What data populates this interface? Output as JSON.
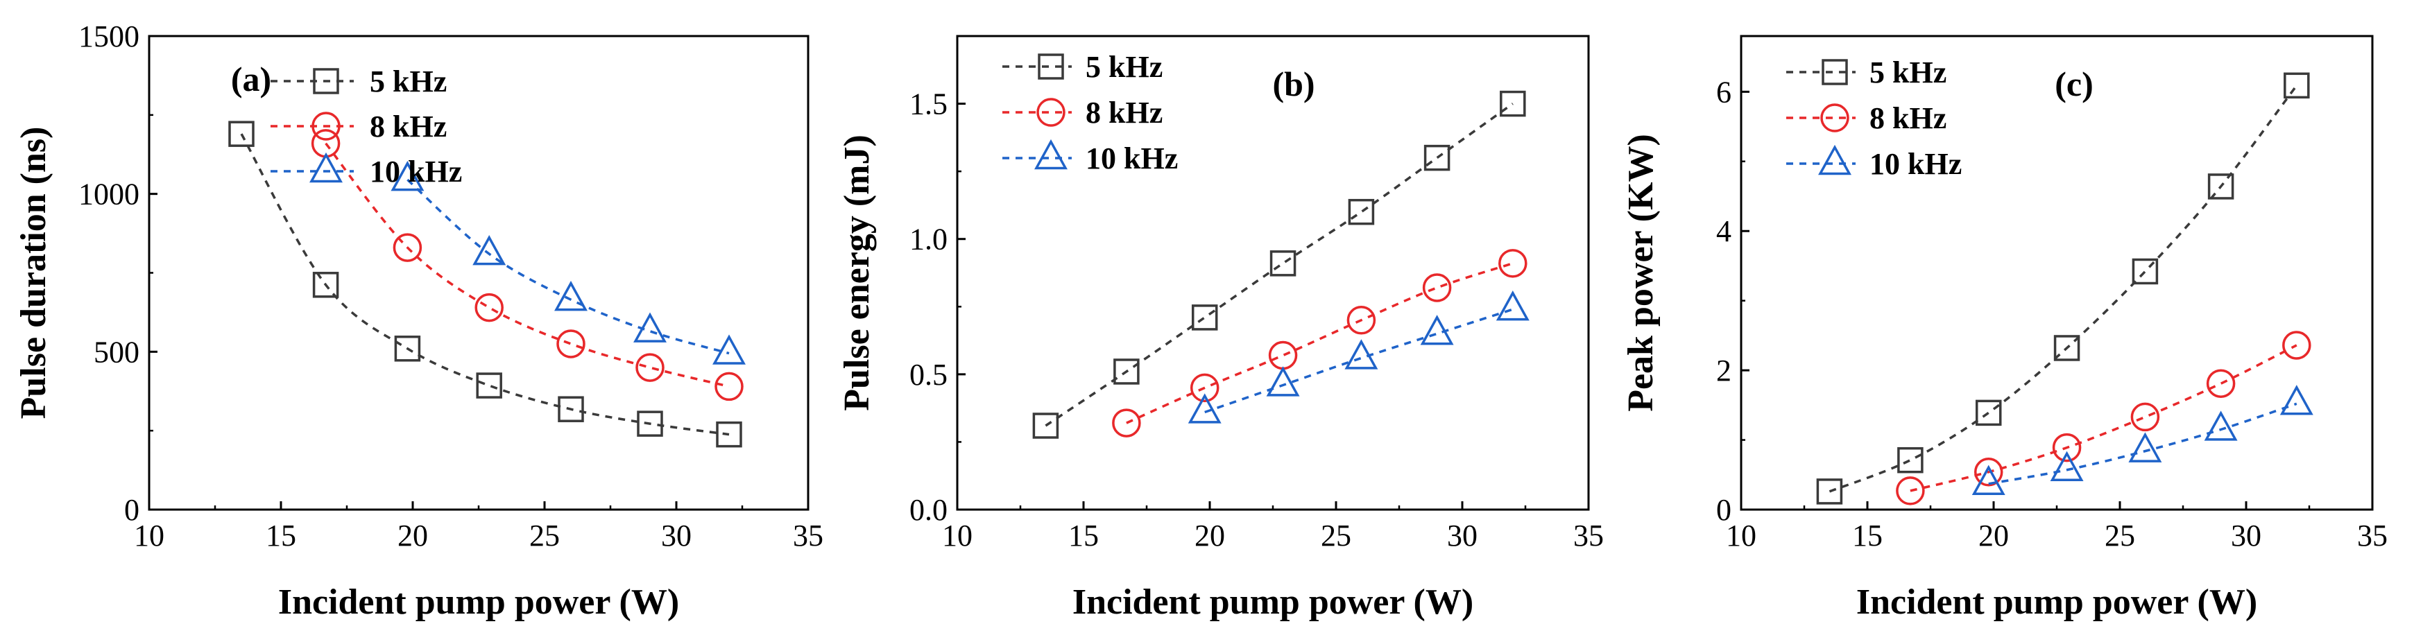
{
  "colors": {
    "5 kHz": "#3a3a3a",
    "8 kHz": "#e8282a",
    "10 kHz": "#1f63c9"
  },
  "chart_data": [
    {
      "type": "scatter",
      "panel_label": "(a)",
      "xlabel": "Incident pump power (W)",
      "ylabel": "Pulse duration (ns)",
      "xlim": [
        10,
        35
      ],
      "ylim": [
        0,
        1500
      ],
      "xticks": [
        10,
        15,
        20,
        25,
        30,
        35
      ],
      "yticks": [
        0,
        500,
        1000,
        1500
      ],
      "ytick_labels": [
        "0",
        "500",
        "1000",
        "1500"
      ],
      "legend_position": "top-right",
      "series": [
        {
          "name": "5 kHz",
          "marker": "square",
          "x": [
            13.5,
            16.7,
            19.8,
            22.9,
            26.0,
            29.0,
            32.0
          ],
          "y": [
            1190,
            712,
            510,
            393,
            318,
            272,
            238
          ]
        },
        {
          "name": "8 kHz",
          "marker": "circle",
          "x": [
            16.7,
            19.8,
            22.9,
            26.0,
            29.0,
            32.0
          ],
          "y": [
            1160,
            830,
            640,
            525,
            450,
            390
          ]
        },
        {
          "name": "10 kHz",
          "marker": "triangle",
          "x": [
            19.8,
            22.9,
            26.0,
            29.0,
            32.0
          ],
          "y": [
            1045,
            810,
            665,
            565,
            495
          ]
        }
      ]
    },
    {
      "type": "scatter",
      "panel_label": "(b)",
      "xlabel": "Incident pump power (W)",
      "ylabel": "Pulse energy (mJ)",
      "xlim": [
        10,
        35
      ],
      "ylim": [
        0,
        1.75
      ],
      "xticks": [
        10,
        15,
        20,
        25,
        30,
        35
      ],
      "yticks": [
        0,
        0.5,
        1.0,
        1.5
      ],
      "ytick_labels": [
        "0.0",
        "0.5",
        "1.0",
        "1.5"
      ],
      "legend_position": "top-left",
      "series": [
        {
          "name": "5 kHz",
          "marker": "square",
          "x": [
            13.5,
            16.7,
            19.8,
            22.9,
            26.0,
            29.0,
            32.0
          ],
          "y": [
            0.31,
            0.51,
            0.71,
            0.91,
            1.1,
            1.3,
            1.5
          ]
        },
        {
          "name": "8 kHz",
          "marker": "circle",
          "x": [
            16.7,
            19.8,
            22.9,
            26.0,
            29.0,
            32.0
          ],
          "y": [
            0.32,
            0.45,
            0.57,
            0.7,
            0.82,
            0.91
          ]
        },
        {
          "name": "10 kHz",
          "marker": "triangle",
          "x": [
            19.8,
            22.9,
            26.0,
            29.0,
            32.0
          ],
          "y": [
            0.36,
            0.46,
            0.56,
            0.65,
            0.74
          ]
        }
      ]
    },
    {
      "type": "scatter",
      "panel_label": "(c)",
      "xlabel": "Incident pump power (W)",
      "ylabel": "Peak power (KW)",
      "xlim": [
        10,
        35
      ],
      "ylim": [
        0,
        6.8
      ],
      "xticks": [
        10,
        15,
        20,
        25,
        30,
        35
      ],
      "yticks": [
        0,
        2,
        4,
        6
      ],
      "ytick_labels": [
        "0",
        "2",
        "4",
        "6"
      ],
      "legend_position": "top-left",
      "series": [
        {
          "name": "5 kHz",
          "marker": "square",
          "x": [
            13.5,
            16.7,
            19.8,
            22.9,
            26.0,
            29.0,
            32.0
          ],
          "y": [
            0.26,
            0.71,
            1.39,
            2.32,
            3.42,
            4.64,
            6.09
          ]
        },
        {
          "name": "8 kHz",
          "marker": "circle",
          "x": [
            16.7,
            19.8,
            22.9,
            26.0,
            29.0,
            32.0
          ],
          "y": [
            0.27,
            0.54,
            0.89,
            1.33,
            1.81,
            2.36
          ]
        },
        {
          "name": "10 kHz",
          "marker": "triangle",
          "x": [
            19.8,
            22.9,
            26.0,
            29.0,
            32.0
          ],
          "y": [
            0.37,
            0.57,
            0.84,
            1.15,
            1.52
          ]
        }
      ]
    }
  ]
}
